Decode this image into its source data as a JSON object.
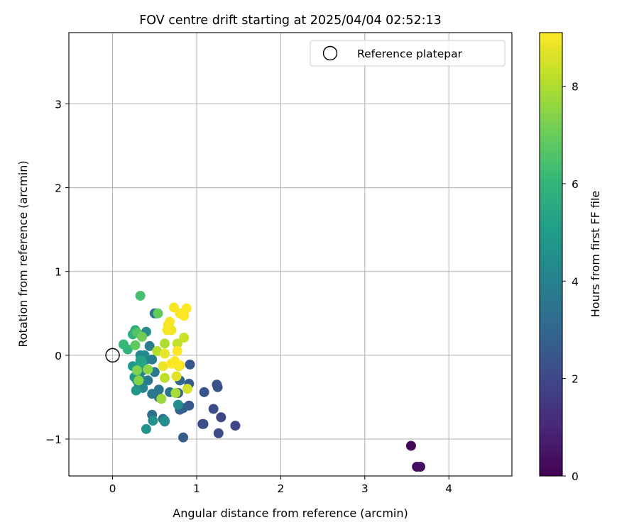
{
  "chart_data": {
    "type": "scatter",
    "title": "FOV centre drift starting at 2025/04/04 02:52:13",
    "xlabel": "Angular distance from reference (arcmin)",
    "ylabel": "Rotation from reference (arcmin)",
    "xlim": [
      -0.52,
      4.75
    ],
    "ylim": [
      -1.44,
      3.85
    ],
    "xticks": [
      0,
      1,
      2,
      3,
      4
    ],
    "yticks": [
      -1,
      0,
      1,
      2,
      3
    ],
    "xtick_labels": [
      "0",
      "1",
      "2",
      "3",
      "4"
    ],
    "ytick_labels": [
      "−1",
      "0",
      "1",
      "2",
      "3"
    ],
    "grid": true,
    "legend": {
      "position": "top-right",
      "entries": [
        "Reference platepar"
      ]
    },
    "colorbar": {
      "label": "Hours from first FF file",
      "colormap": "viridis",
      "range": [
        0,
        9.1
      ],
      "ticks": [
        0,
        2,
        4,
        6,
        8
      ],
      "tick_labels": [
        "0",
        "2",
        "4",
        "6",
        "8"
      ]
    },
    "reference_point": {
      "name": "Reference platepar",
      "x": 0,
      "y": 0
    },
    "points": [
      {
        "x": 3.55,
        "y": -1.08,
        "h": 0.2
      },
      {
        "x": 3.62,
        "y": -1.33,
        "h": 0.3
      },
      {
        "x": 3.66,
        "y": -1.33,
        "h": 0.4
      },
      {
        "x": 1.46,
        "y": -0.84,
        "h": 1.9
      },
      {
        "x": 1.29,
        "y": -0.74,
        "h": 2.0
      },
      {
        "x": 1.26,
        "y": -0.93,
        "h": 2.1
      },
      {
        "x": 1.07,
        "y": -0.82,
        "h": 2.1
      },
      {
        "x": 1.08,
        "y": -0.82,
        "h": 2.2
      },
      {
        "x": 1.2,
        "y": -0.64,
        "h": 2.2
      },
      {
        "x": 1.24,
        "y": -0.35,
        "h": 2.3
      },
      {
        "x": 1.25,
        "y": -0.38,
        "h": 2.3
      },
      {
        "x": 1.09,
        "y": -0.44,
        "h": 2.4
      },
      {
        "x": 0.92,
        "y": -0.11,
        "h": 2.5
      },
      {
        "x": 0.91,
        "y": -0.34,
        "h": 2.6
      },
      {
        "x": 0.91,
        "y": -0.6,
        "h": 2.6
      },
      {
        "x": 0.84,
        "y": -0.98,
        "h": 2.7
      },
      {
        "x": 0.84,
        "y": -0.63,
        "h": 2.7
      },
      {
        "x": 0.8,
        "y": -0.65,
        "h": 2.8
      },
      {
        "x": 0.78,
        "y": -0.45,
        "h": 2.9
      },
      {
        "x": 0.8,
        "y": -0.3,
        "h": 3.0
      },
      {
        "x": 0.62,
        "y": -0.79,
        "h": 3.1
      },
      {
        "x": 0.6,
        "y": -0.76,
        "h": 3.2
      },
      {
        "x": 0.55,
        "y": -0.5,
        "h": 3.3
      },
      {
        "x": 0.47,
        "y": -0.71,
        "h": 3.4
      },
      {
        "x": 0.52,
        "y": 0.5,
        "h": 3.4
      },
      {
        "x": 0.5,
        "y": 0.5,
        "h": 3.5
      },
      {
        "x": 0.68,
        "y": -0.44,
        "h": 3.5
      },
      {
        "x": 0.55,
        "y": -0.41,
        "h": 3.6
      },
      {
        "x": 0.47,
        "y": -0.46,
        "h": 3.6
      },
      {
        "x": 0.5,
        "y": -0.2,
        "h": 3.7
      },
      {
        "x": 0.42,
        "y": -0.3,
        "h": 3.7
      },
      {
        "x": 0.44,
        "y": 0.11,
        "h": 3.8
      },
      {
        "x": 0.4,
        "y": -0.05,
        "h": 3.9
      },
      {
        "x": 0.47,
        "y": -0.05,
        "h": 3.9
      },
      {
        "x": 0.36,
        "y": -0.18,
        "h": 4.0
      },
      {
        "x": 0.33,
        "y": -0.28,
        "h": 4.1
      },
      {
        "x": 0.31,
        "y": -0.34,
        "h": 4.1
      },
      {
        "x": 0.36,
        "y": -0.39,
        "h": 4.2
      },
      {
        "x": 0.38,
        "y": 0.0,
        "h": 4.3
      },
      {
        "x": 0.33,
        "y": 0.0,
        "h": 4.3
      },
      {
        "x": 0.4,
        "y": 0.28,
        "h": 4.4
      },
      {
        "x": 0.78,
        "y": -0.59,
        "h": 4.4
      },
      {
        "x": 0.62,
        "y": -0.78,
        "h": 4.5
      },
      {
        "x": 0.48,
        "y": -0.78,
        "h": 4.6
      },
      {
        "x": 0.4,
        "y": -0.88,
        "h": 4.7
      },
      {
        "x": 0.28,
        "y": -0.42,
        "h": 4.8
      },
      {
        "x": 0.24,
        "y": -0.13,
        "h": 4.9
      },
      {
        "x": 0.26,
        "y": -0.26,
        "h": 5.0
      },
      {
        "x": 0.29,
        "y": -0.3,
        "h": 5.0
      },
      {
        "x": 0.33,
        "y": -0.06,
        "h": 5.2
      },
      {
        "x": 0.35,
        "y": -0.08,
        "h": 5.3
      },
      {
        "x": 0.35,
        "y": -0.14,
        "h": 5.4
      },
      {
        "x": 0.27,
        "y": 0.3,
        "h": 5.6
      },
      {
        "x": 0.24,
        "y": 0.25,
        "h": 5.8
      },
      {
        "x": 0.18,
        "y": 0.07,
        "h": 5.9
      },
      {
        "x": 0.13,
        "y": 0.13,
        "h": 6.1
      },
      {
        "x": 0.33,
        "y": 0.71,
        "h": 6.4
      },
      {
        "x": 0.29,
        "y": 0.27,
        "h": 6.6
      },
      {
        "x": 0.27,
        "y": 0.12,
        "h": 6.8
      },
      {
        "x": 0.54,
        "y": 0.5,
        "h": 6.9
      },
      {
        "x": 0.35,
        "y": 0.22,
        "h": 7.1
      },
      {
        "x": 0.29,
        "y": -0.18,
        "h": 7.3
      },
      {
        "x": 0.31,
        "y": -0.3,
        "h": 7.4
      },
      {
        "x": 0.42,
        "y": -0.17,
        "h": 7.5
      },
      {
        "x": 0.58,
        "y": -0.52,
        "h": 7.7
      },
      {
        "x": 0.75,
        "y": -0.45,
        "h": 7.9
      },
      {
        "x": 0.62,
        "y": 0.14,
        "h": 8.0
      },
      {
        "x": 0.53,
        "y": 0.05,
        "h": 8.1
      },
      {
        "x": 0.62,
        "y": -0.27,
        "h": 8.2
      },
      {
        "x": 0.77,
        "y": 0.14,
        "h": 8.3
      },
      {
        "x": 0.85,
        "y": 0.21,
        "h": 8.4
      },
      {
        "x": 0.89,
        "y": -0.4,
        "h": 8.5
      },
      {
        "x": 0.79,
        "y": -0.13,
        "h": 8.6
      },
      {
        "x": 0.76,
        "y": -0.25,
        "h": 8.7
      },
      {
        "x": 0.62,
        "y": 0.02,
        "h": 8.8
      },
      {
        "x": 0.6,
        "y": -0.13,
        "h": 8.8
      },
      {
        "x": 0.66,
        "y": 0.36,
        "h": 8.9
      },
      {
        "x": 0.7,
        "y": 0.3,
        "h": 8.9
      },
      {
        "x": 0.65,
        "y": 0.3,
        "h": 9.0
      },
      {
        "x": 0.68,
        "y": 0.4,
        "h": 9.0
      },
      {
        "x": 0.73,
        "y": 0.57,
        "h": 9.0
      },
      {
        "x": 0.8,
        "y": 0.5,
        "h": 9.0
      },
      {
        "x": 0.85,
        "y": 0.47,
        "h": 9.1
      },
      {
        "x": 0.88,
        "y": 0.56,
        "h": 9.1
      },
      {
        "x": 0.7,
        "y": -0.1,
        "h": 9.1
      },
      {
        "x": 0.74,
        "y": -0.07,
        "h": 9.1
      },
      {
        "x": 0.77,
        "y": 0.05,
        "h": 9.1
      },
      {
        "x": 0.8,
        "y": -0.12,
        "h": 9.1
      }
    ]
  }
}
